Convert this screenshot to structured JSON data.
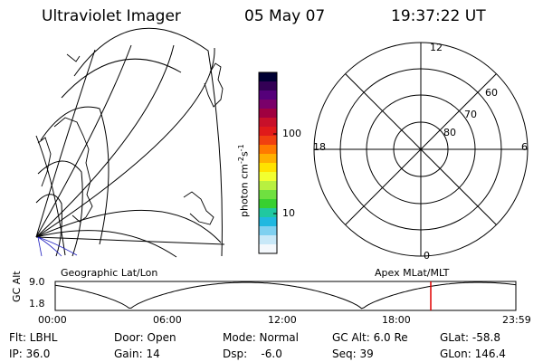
{
  "header": {
    "instrument": "Ultraviolet Imager",
    "date": "05 May 07",
    "time": "19:37:22 UT"
  },
  "colorbar": {
    "label": "photon cm",
    "label_exp1": "-2",
    "label_mid": "s",
    "label_exp2": "-1",
    "tick_100": "100",
    "tick_10": "10",
    "scale": "log",
    "colors": [
      "#000033",
      "#330055",
      "#55007a",
      "#7a006a",
      "#a00040",
      "#c8102a",
      "#e01a1a",
      "#f04010",
      "#ff7a00",
      "#ffb000",
      "#ffe200",
      "#f2ff30",
      "#b8f040",
      "#6fe040",
      "#38d030",
      "#20c8a0",
      "#20b8e0",
      "#7fd0f0",
      "#c8e8f8",
      "#f4f8fc"
    ]
  },
  "map": {
    "geo_label": "Geographic Lat/Lon"
  },
  "polar": {
    "label_12": "12",
    "label_18": "18",
    "label_6": "6",
    "label_0": "0",
    "label_60": "60",
    "label_70": "70",
    "label_80": "80",
    "apex_label": "Apex MLat/MLT"
  },
  "altitude_plot": {
    "ylabel": "GC Alt",
    "y_top": "9.0",
    "y_bottom": "1.8",
    "x_ticks": [
      "00:00",
      "06:00",
      "12:00",
      "18:00",
      "23:59"
    ],
    "marker_color": "#e00000"
  },
  "info": {
    "filter": "Flt: LBHL",
    "door": "Door: Open",
    "mode": "Mode: Normal",
    "gc_alt": "GC Alt: 6.0 Re",
    "glat": "GLat: -58.8",
    "ip": "IP: 36.0",
    "gain": "Gain: 14",
    "dsp": "Dsp:    -6.0",
    "seq": "Seq: 39",
    "glon": "GLon: 146.4"
  }
}
